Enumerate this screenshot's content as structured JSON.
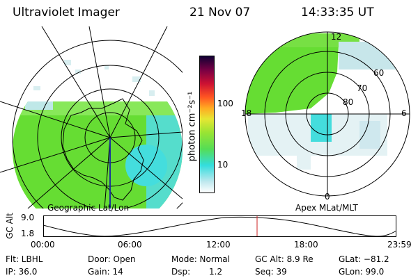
{
  "header": {
    "instrument": "Ultraviolet Imager",
    "date": "21 Nov 07",
    "time": "14:33:35 UT"
  },
  "left_panel": {
    "caption": "Geographic Lat/Lon"
  },
  "right_panel": {
    "caption": "Apex MLat/MLT",
    "mlt_labels": [
      "12",
      "18",
      "6",
      "0"
    ],
    "lat_labels": [
      "60",
      "70",
      "80"
    ]
  },
  "colorbar": {
    "label": "photon cm⁻²s⁻¹",
    "scale": "log",
    "tick_labels": [
      "100",
      "10"
    ]
  },
  "altitude_plot": {
    "ylabel": "GC Alt",
    "y_ticks": [
      "9.0",
      "1.8"
    ],
    "x_ticks": [
      "00:00",
      "06:00",
      "12:00",
      "18:00",
      "23:59"
    ],
    "current_time_marker": "14:33"
  },
  "status": {
    "filter": "Flt: LBHL",
    "door": "Door: Open",
    "mode": "Mode: Normal",
    "gc_alt": "GC Alt: 8.9 Re",
    "glat": "GLat: −81.2",
    "ip": "IP: 36.0",
    "gain": "Gain: 14",
    "dsp_label": "Dsp:",
    "dsp_value": "1.2",
    "seq": "Seq: 39",
    "glon": "GLon: 99.0"
  },
  "colors": {
    "aurora_green": "#66dd33",
    "aurora_cyan": "#33dddd",
    "marker_red": "#cc2222"
  }
}
